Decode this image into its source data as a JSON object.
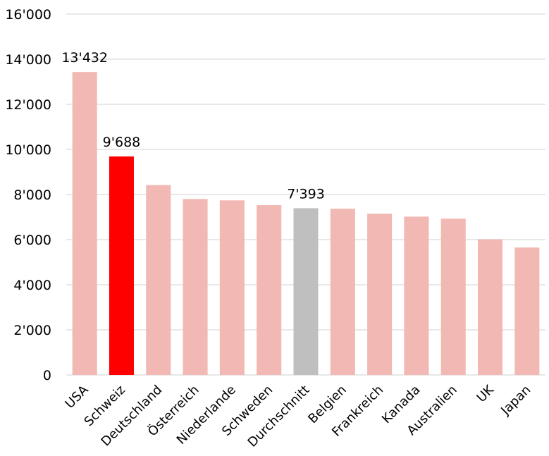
{
  "chart_data": {
    "type": "bar",
    "title": "",
    "xlabel": "",
    "ylabel": "",
    "ylim": [
      0,
      16000
    ],
    "yticks": [
      0,
      2000,
      4000,
      6000,
      8000,
      10000,
      12000,
      14000,
      16000
    ],
    "ytick_labels": [
      "0",
      "2'000",
      "4'000",
      "6'000",
      "8'000",
      "10'000",
      "12'000",
      "14'000",
      "16'000"
    ],
    "grid": true,
    "legend": "none",
    "categories": [
      "USA",
      "Schweiz",
      "Deutschland",
      "Österreich",
      "Niederlande",
      "Schweden",
      "Durchschnitt",
      "Belgien",
      "Frankreich",
      "Kanada",
      "Australien",
      "UK",
      "Japan"
    ],
    "values": [
      13432,
      9688,
      8420,
      7800,
      7740,
      7530,
      7393,
      7370,
      7150,
      7020,
      6930,
      6020,
      5650
    ],
    "data_labels": [
      "13'432",
      "9'688",
      "",
      "",
      "",
      "",
      "7'393",
      "",
      "",
      "",
      "",
      "",
      ""
    ],
    "colors": {
      "default": "#f2b8b3",
      "highlight": "#ff0000",
      "average": "#bfbfbf",
      "grid": "#d9d9d9"
    },
    "bar_colors": [
      "default",
      "highlight",
      "default",
      "default",
      "default",
      "default",
      "average",
      "default",
      "default",
      "default",
      "default",
      "default",
      "default"
    ]
  }
}
